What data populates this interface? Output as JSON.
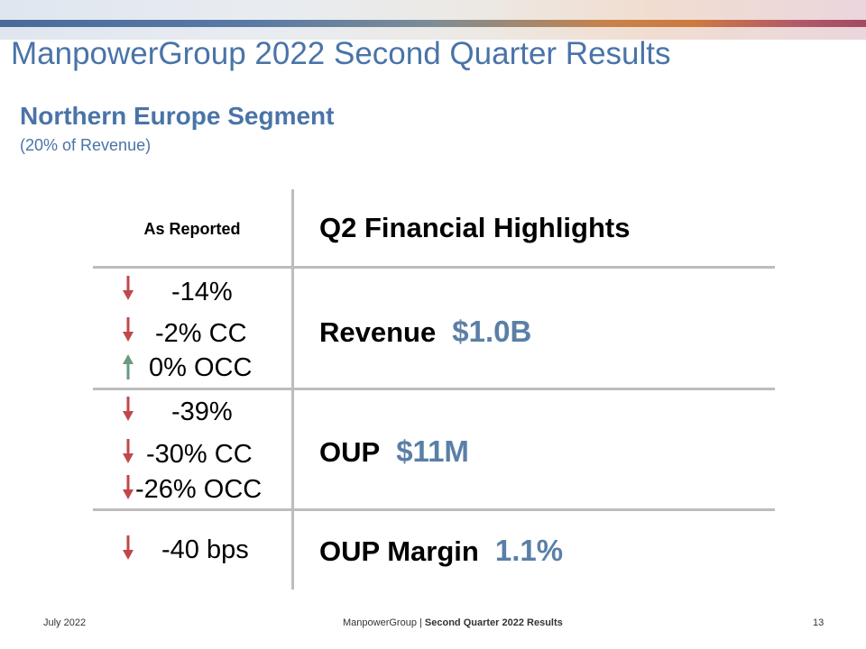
{
  "slide": {
    "title": "ManpowerGroup 2022 Second Quarter Results",
    "subtitle": "Northern Europe Segment",
    "subnote": "(20% of Revenue)"
  },
  "table": {
    "left_header": "As Reported",
    "right_header": "Q2 Financial Highlights",
    "revenue": {
      "label": "Revenue",
      "value": "$1.0B",
      "changes": [
        {
          "text": "-14%",
          "direction": "down"
        },
        {
          "text": "-2% CC",
          "direction": "down"
        },
        {
          "text": "0% OCC",
          "direction": "up"
        }
      ]
    },
    "oup": {
      "label": "OUP",
      "value": "$11M",
      "changes": [
        {
          "text": "-39%",
          "direction": "down"
        },
        {
          "text": "-30% CC",
          "direction": "down"
        },
        {
          "text": "-26% OCC",
          "direction": "down"
        }
      ]
    },
    "oup_margin": {
      "label": "OUP Margin",
      "value": "1.1%",
      "changes": [
        {
          "text": "-40 bps",
          "direction": "down"
        }
      ]
    }
  },
  "footer": {
    "date": "July 2022",
    "company": "ManpowerGroup",
    "separator": " | ",
    "report": "Second Quarter 2022 Results",
    "page": "13"
  },
  "colors": {
    "title": "#4a74a8",
    "value": "#5b7fa6",
    "arrow_down": "#c0484a",
    "arrow_up": "#6a9a80"
  },
  "icons": {
    "down": "arrow-down-icon",
    "up": "arrow-up-icon"
  }
}
